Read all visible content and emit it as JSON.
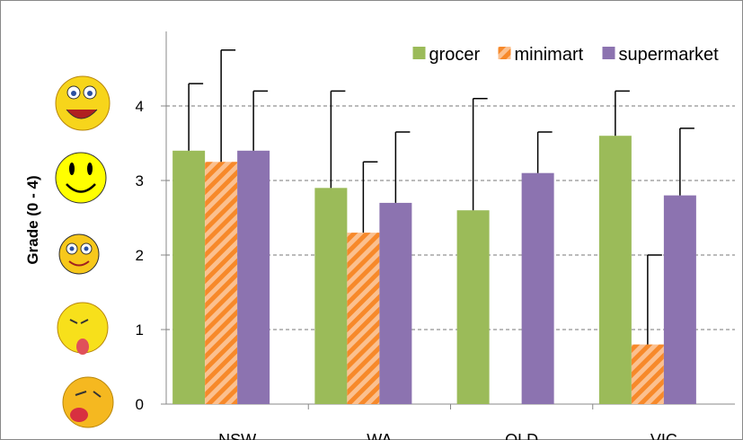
{
  "chart_data": {
    "type": "bar",
    "y_label": "Grade (0 - 4)",
    "categories": [
      "NSW",
      "WA",
      "QLD",
      "VIC"
    ],
    "series": [
      {
        "name": "grocer",
        "color": "#9bbb59",
        "values": [
          3.4,
          2.9,
          2.6,
          3.6
        ],
        "errors": [
          0.9,
          1.3,
          1.5,
          0.6
        ]
      },
      {
        "name": "minimart",
        "color": "#f79646",
        "hatched": true,
        "values": [
          3.25,
          2.3,
          null,
          0.8
        ],
        "errors": [
          1.5,
          0.95,
          null,
          1.2
        ]
      },
      {
        "name": "supermarket",
        "color": "#8c73b0",
        "values": [
          3.4,
          2.7,
          3.1,
          2.8
        ],
        "errors": [
          0.8,
          0.95,
          0.55,
          0.9
        ]
      }
    ],
    "ylim": [
      0,
      5
    ],
    "yticks": [
      0,
      1,
      2,
      3,
      4
    ],
    "grid": true,
    "legend": "top-right"
  }
}
